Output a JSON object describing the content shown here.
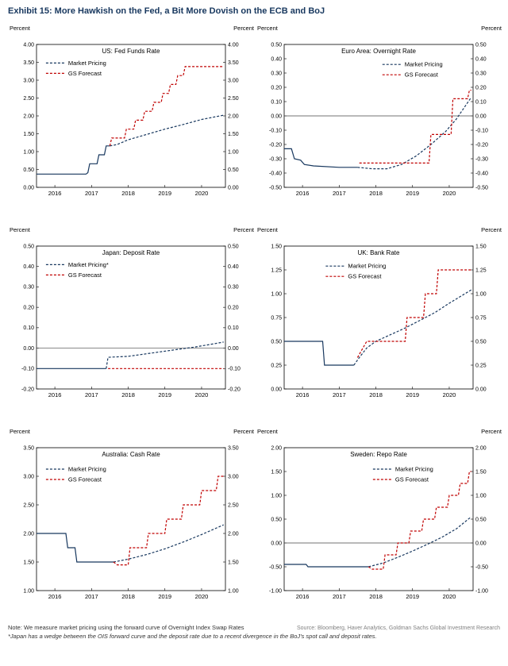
{
  "title": "Exhibit 15: More Hawkish on the Fed, a Bit More Dovish on the ECB and BoJ",
  "colors": {
    "market": "#17375e",
    "forecast": "#c00000"
  },
  "footer": {
    "note1": "Note: We measure market pricing using the forward curve of Overnight Index Swap Rates",
    "note2": "*Japan has a wedge between the OIS forward curve and the deposit rate due to a recent divergence in the BoJ's spot call and deposit rates.",
    "source": "Source: Bloomberg, Haver Analytics, Goldman Sachs Global Investment Research"
  },
  "chart_data": [
    {
      "type": "line",
      "title": "US: Fed Funds Rate",
      "ylabel": "Percent",
      "ylim": [
        0,
        4
      ],
      "ytick_step": 0.5,
      "xlim": [
        2015.5,
        2020.65
      ],
      "xticks": [
        2016,
        2017,
        2018,
        2019,
        2020
      ],
      "zero_line": false,
      "legend": {
        "x": 0.05,
        "y": 0.13
      },
      "series": [
        {
          "role": "market",
          "name": "Market Pricing",
          "solid_until": 2017.5,
          "points": [
            [
              2015.5,
              0.37
            ],
            [
              2016.85,
              0.37
            ],
            [
              2016.9,
              0.41
            ],
            [
              2016.95,
              0.66
            ],
            [
              2017.15,
              0.66
            ],
            [
              2017.2,
              0.91
            ],
            [
              2017.35,
              0.91
            ],
            [
              2017.4,
              1.16
            ],
            [
              2017.5,
              1.16
            ],
            [
              2017.7,
              1.2
            ],
            [
              2018.0,
              1.33
            ],
            [
              2018.5,
              1.48
            ],
            [
              2019.0,
              1.63
            ],
            [
              2019.5,
              1.76
            ],
            [
              2020.0,
              1.9
            ],
            [
              2020.6,
              2.02
            ]
          ]
        },
        {
          "role": "forecast",
          "name": "GS Forecast",
          "points": [
            [
              2017.5,
              1.16
            ],
            [
              2017.55,
              1.38
            ],
            [
              2017.9,
              1.38
            ],
            [
              2017.95,
              1.63
            ],
            [
              2018.15,
              1.63
            ],
            [
              2018.2,
              1.88
            ],
            [
              2018.4,
              1.88
            ],
            [
              2018.45,
              2.13
            ],
            [
              2018.65,
              2.13
            ],
            [
              2018.7,
              2.38
            ],
            [
              2018.9,
              2.38
            ],
            [
              2018.95,
              2.63
            ],
            [
              2019.1,
              2.63
            ],
            [
              2019.15,
              2.88
            ],
            [
              2019.3,
              2.88
            ],
            [
              2019.35,
              3.13
            ],
            [
              2019.5,
              3.13
            ],
            [
              2019.55,
              3.38
            ],
            [
              2020.6,
              3.38
            ]
          ]
        }
      ]
    },
    {
      "type": "line",
      "title": "Euro Area: Overnight Rate",
      "ylabel": "Percent",
      "ylim": [
        -0.5,
        0.5
      ],
      "ytick_step": 0.1,
      "xlim": [
        2015.5,
        2020.65
      ],
      "xticks": [
        2016,
        2017,
        2018,
        2019,
        2020
      ],
      "zero_line": true,
      "legend": {
        "x": 0.52,
        "y": 0.14
      },
      "series": [
        {
          "role": "market",
          "name": "Market Pricing",
          "solid_until": 2017.5,
          "points": [
            [
              2015.5,
              -0.23
            ],
            [
              2015.7,
              -0.23
            ],
            [
              2015.78,
              -0.3
            ],
            [
              2015.95,
              -0.31
            ],
            [
              2016.05,
              -0.34
            ],
            [
              2016.3,
              -0.35
            ],
            [
              2017.0,
              -0.36
            ],
            [
              2017.5,
              -0.36
            ],
            [
              2017.9,
              -0.37
            ],
            [
              2018.3,
              -0.37
            ],
            [
              2018.7,
              -0.34
            ],
            [
              2019.1,
              -0.28
            ],
            [
              2019.5,
              -0.2
            ],
            [
              2019.9,
              -0.11
            ],
            [
              2020.2,
              -0.02
            ],
            [
              2020.6,
              0.13
            ]
          ]
        },
        {
          "role": "forecast",
          "name": "GS Forecast",
          "points": [
            [
              2017.55,
              -0.33
            ],
            [
              2019.45,
              -0.33
            ],
            [
              2019.5,
              -0.13
            ],
            [
              2020.05,
              -0.13
            ],
            [
              2020.1,
              0.12
            ],
            [
              2020.5,
              0.12
            ],
            [
              2020.55,
              0.18
            ],
            [
              2020.6,
              0.18
            ]
          ]
        }
      ]
    },
    {
      "type": "line",
      "title": "Japan: Deposit Rate",
      "ylabel": "Percent",
      "ylim": [
        -0.2,
        0.5
      ],
      "ytick_step": 0.1,
      "xlim": [
        2015.5,
        2020.65
      ],
      "xticks": [
        2016,
        2017,
        2018,
        2019,
        2020
      ],
      "zero_line": true,
      "legend": {
        "x": 0.05,
        "y": 0.13
      },
      "series": [
        {
          "role": "market",
          "name": "Market Pricing*",
          "solid_until": 2017.4,
          "points": [
            [
              2015.5,
              -0.1
            ],
            [
              2017.4,
              -0.1
            ],
            [
              2017.45,
              -0.045
            ],
            [
              2018.0,
              -0.04
            ],
            [
              2018.6,
              -0.025
            ],
            [
              2019.2,
              -0.01
            ],
            [
              2019.8,
              0.005
            ],
            [
              2020.3,
              0.02
            ],
            [
              2020.6,
              0.03
            ]
          ]
        },
        {
          "role": "forecast",
          "name": "GS Forecast",
          "points": [
            [
              2017.45,
              -0.1
            ],
            [
              2020.6,
              -0.1
            ]
          ]
        }
      ]
    },
    {
      "type": "line",
      "title": "UK: Bank Rate",
      "ylabel": "Percent",
      "ylim": [
        0,
        1.5
      ],
      "ytick_step": 0.25,
      "xlim": [
        2015.5,
        2020.65
      ],
      "xticks": [
        2016,
        2017,
        2018,
        2019,
        2020
      ],
      "zero_line": false,
      "legend": {
        "x": 0.22,
        "y": 0.14
      },
      "series": [
        {
          "role": "market",
          "name": "Market Pricing",
          "solid_until": 2017.4,
          "points": [
            [
              2015.5,
              0.5
            ],
            [
              2016.55,
              0.5
            ],
            [
              2016.6,
              0.25
            ],
            [
              2017.4,
              0.25
            ],
            [
              2017.55,
              0.33
            ],
            [
              2017.75,
              0.43
            ],
            [
              2018.0,
              0.5
            ],
            [
              2018.4,
              0.57
            ],
            [
              2018.8,
              0.64
            ],
            [
              2019.2,
              0.72
            ],
            [
              2019.6,
              0.8
            ],
            [
              2020.0,
              0.9
            ],
            [
              2020.6,
              1.04
            ]
          ]
        },
        {
          "role": "forecast",
          "name": "GS Forecast",
          "points": [
            [
              2017.5,
              0.33
            ],
            [
              2017.75,
              0.5
            ],
            [
              2018.8,
              0.5
            ],
            [
              2018.85,
              0.75
            ],
            [
              2019.3,
              0.75
            ],
            [
              2019.35,
              1.0
            ],
            [
              2019.65,
              1.0
            ],
            [
              2019.7,
              1.25
            ],
            [
              2020.6,
              1.25
            ]
          ]
        }
      ]
    },
    {
      "type": "line",
      "title": "Australia: Cash Rate",
      "ylabel": "Percent",
      "ylim": [
        1.0,
        3.5
      ],
      "ytick_step": 0.5,
      "xlim": [
        2015.5,
        2020.65
      ],
      "xticks": [
        2016,
        2017,
        2018,
        2019,
        2020
      ],
      "zero_line": false,
      "legend": {
        "x": 0.05,
        "y": 0.15
      },
      "series": [
        {
          "role": "market",
          "name": "Market Pricing",
          "solid_until": 2017.6,
          "points": [
            [
              2015.5,
              2.0
            ],
            [
              2016.3,
              2.0
            ],
            [
              2016.35,
              1.75
            ],
            [
              2016.55,
              1.75
            ],
            [
              2016.6,
              1.5
            ],
            [
              2017.6,
              1.5
            ],
            [
              2018.0,
              1.55
            ],
            [
              2018.5,
              1.63
            ],
            [
              2019.0,
              1.73
            ],
            [
              2019.5,
              1.85
            ],
            [
              2020.0,
              1.98
            ],
            [
              2020.6,
              2.15
            ]
          ]
        },
        {
          "role": "forecast",
          "name": "GS Forecast",
          "points": [
            [
              2017.6,
              1.5
            ],
            [
              2017.7,
              1.45
            ],
            [
              2018.0,
              1.45
            ],
            [
              2018.05,
              1.75
            ],
            [
              2018.5,
              1.75
            ],
            [
              2018.55,
              2.0
            ],
            [
              2019.0,
              2.0
            ],
            [
              2019.05,
              2.25
            ],
            [
              2019.45,
              2.25
            ],
            [
              2019.5,
              2.5
            ],
            [
              2019.95,
              2.5
            ],
            [
              2020.0,
              2.75
            ],
            [
              2020.4,
              2.75
            ],
            [
              2020.45,
              3.0
            ],
            [
              2020.6,
              3.0
            ]
          ]
        }
      ]
    },
    {
      "type": "line",
      "title": "Sweden: Repo Rate",
      "ylabel": "Percent",
      "ylim": [
        -1.0,
        2.0
      ],
      "ytick_step": 0.5,
      "xlim": [
        2015.5,
        2020.65
      ],
      "xticks": [
        2016,
        2017,
        2018,
        2019,
        2020
      ],
      "zero_line": true,
      "legend": {
        "x": 0.47,
        "y": 0.15
      },
      "series": [
        {
          "role": "market",
          "name": "Market Pricing",
          "solid_until": 2017.8,
          "points": [
            [
              2015.5,
              -0.45
            ],
            [
              2016.1,
              -0.45
            ],
            [
              2016.15,
              -0.5
            ],
            [
              2017.8,
              -0.5
            ],
            [
              2018.2,
              -0.42
            ],
            [
              2018.6,
              -0.3
            ],
            [
              2019.0,
              -0.17
            ],
            [
              2019.4,
              -0.03
            ],
            [
              2019.8,
              0.12
            ],
            [
              2020.2,
              0.3
            ],
            [
              2020.6,
              0.55
            ]
          ]
        },
        {
          "role": "forecast",
          "name": "GS Forecast",
          "points": [
            [
              2017.8,
              -0.5
            ],
            [
              2017.9,
              -0.55
            ],
            [
              2018.2,
              -0.55
            ],
            [
              2018.25,
              -0.25
            ],
            [
              2018.55,
              -0.25
            ],
            [
              2018.6,
              0.0
            ],
            [
              2018.9,
              0.0
            ],
            [
              2018.95,
              0.25
            ],
            [
              2019.25,
              0.25
            ],
            [
              2019.3,
              0.5
            ],
            [
              2019.6,
              0.5
            ],
            [
              2019.65,
              0.75
            ],
            [
              2019.95,
              0.75
            ],
            [
              2020.0,
              1.0
            ],
            [
              2020.25,
              1.0
            ],
            [
              2020.3,
              1.25
            ],
            [
              2020.5,
              1.25
            ],
            [
              2020.55,
              1.5
            ],
            [
              2020.6,
              1.5
            ]
          ]
        }
      ]
    }
  ]
}
